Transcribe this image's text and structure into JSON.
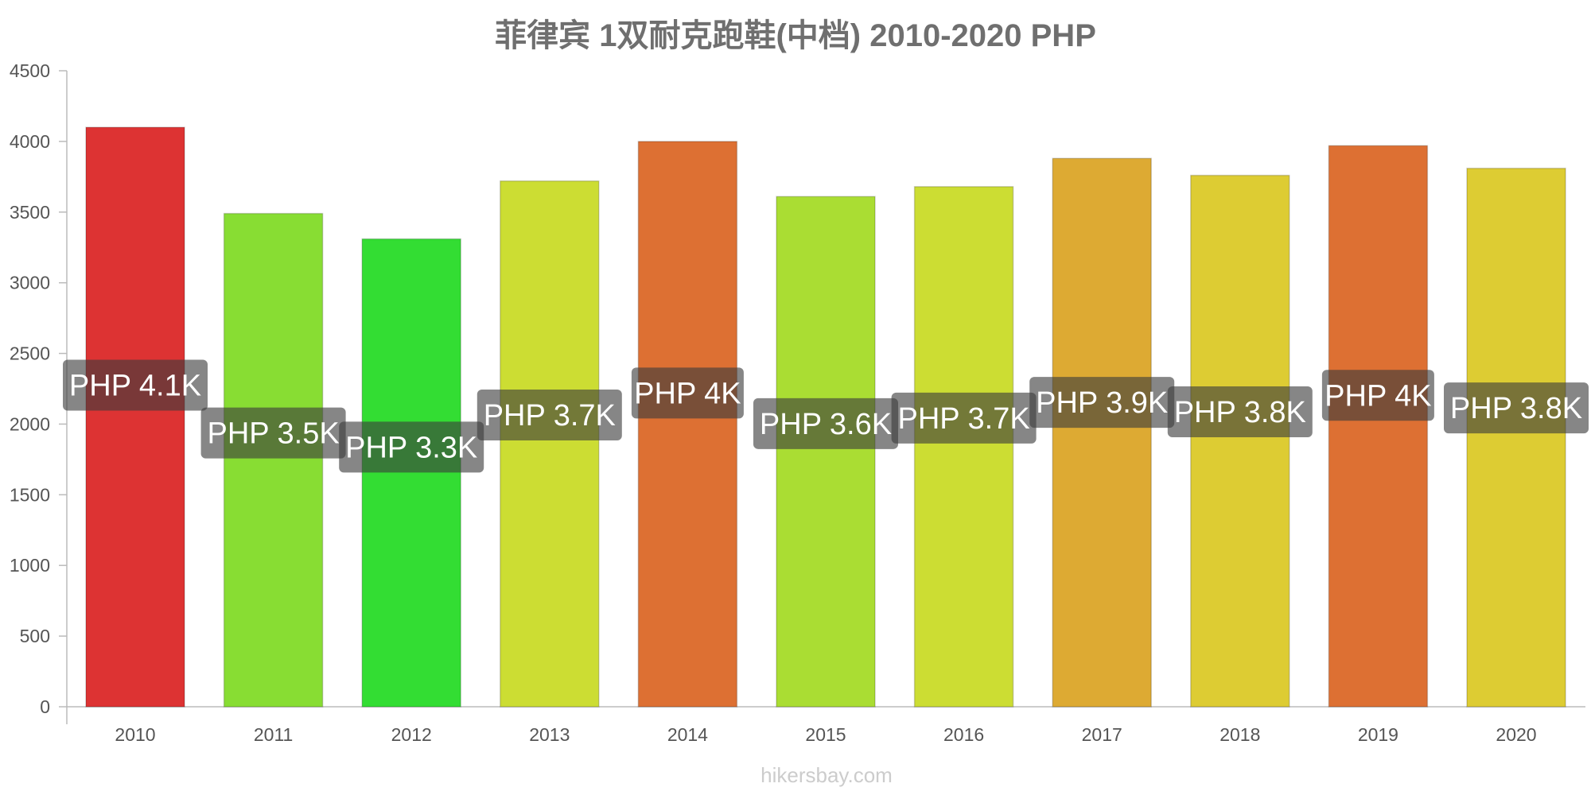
{
  "chart_data": {
    "type": "bar",
    "title": "菲律宾 1双耐克跑鞋(中档) 2010-2020 PHP",
    "xlabel": "",
    "ylabel": "",
    "ylim": [
      0,
      4500
    ],
    "yticks": [
      0,
      500,
      1000,
      1500,
      2000,
      2500,
      3000,
      3500,
      4000,
      4500
    ],
    "categories": [
      "2010",
      "2011",
      "2012",
      "2013",
      "2014",
      "2015",
      "2016",
      "2017",
      "2018",
      "2019",
      "2020"
    ],
    "values": [
      4100,
      3490,
      3310,
      3720,
      4000,
      3610,
      3680,
      3880,
      3760,
      3970,
      3810
    ],
    "labels": [
      "PHP 4.1K",
      "PHP 3.5K",
      "PHP 3.3K",
      "PHP 3.7K",
      "PHP 4K",
      "PHP 3.6K",
      "PHP 3.7K",
      "PHP 3.9K",
      "PHP 3.8K",
      "PHP 4K",
      "PHP 3.8K"
    ],
    "colors": [
      "#dd3333",
      "#88dd33",
      "#33dd33",
      "#ccdd33",
      "#dd7033",
      "#aadd33",
      "#ccdd33",
      "#ddaa33",
      "#ddcc33",
      "#dd7033",
      "#ddcc33"
    ],
    "grid": false,
    "legend": "none"
  },
  "watermark": "hikersbay.com"
}
